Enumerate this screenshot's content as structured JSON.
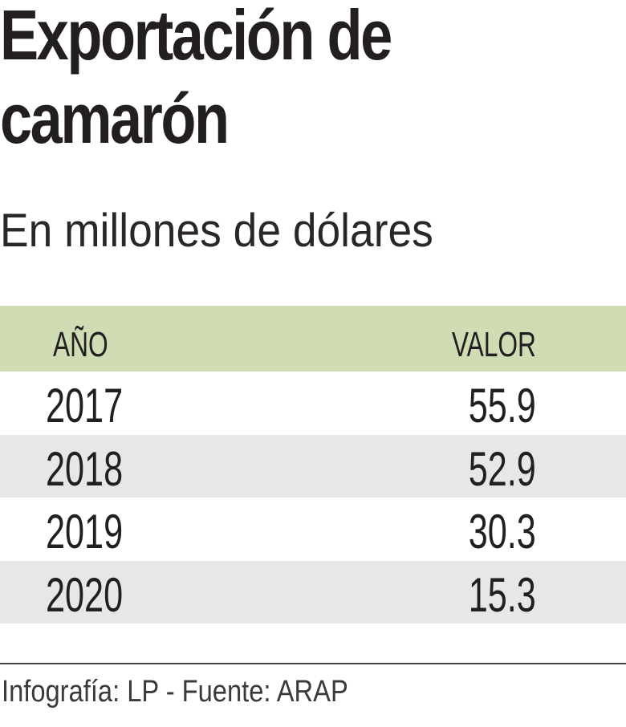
{
  "title": {
    "line1": "Exportación de",
    "line2": "camarón"
  },
  "subtitle": "En millones de dólares",
  "table": {
    "headers": {
      "year": "AÑO",
      "value": "VALOR"
    },
    "rows": [
      {
        "year": "2017",
        "value": "55.9"
      },
      {
        "year": "2018",
        "value": "52.9"
      },
      {
        "year": "2019",
        "value": "30.3"
      },
      {
        "year": "2020",
        "value": "15.3"
      }
    ]
  },
  "footer": "Infografía: LP - Fuente: ARAP",
  "colors": {
    "header_band": "#d0ddb4",
    "alt_row": "#e7e7e7",
    "text": "#231f20"
  },
  "chart_data": {
    "type": "table",
    "title": "Exportación de camarón",
    "subtitle": "En millones de dólares",
    "columns": [
      "AÑO",
      "VALOR"
    ],
    "categories": [
      "2017",
      "2018",
      "2019",
      "2020"
    ],
    "values": [
      55.9,
      52.9,
      30.3,
      15.3
    ],
    "xlabel": "AÑO",
    "ylabel": "VALOR (millones de dólares)",
    "source": "Infografía: LP - Fuente: ARAP"
  }
}
